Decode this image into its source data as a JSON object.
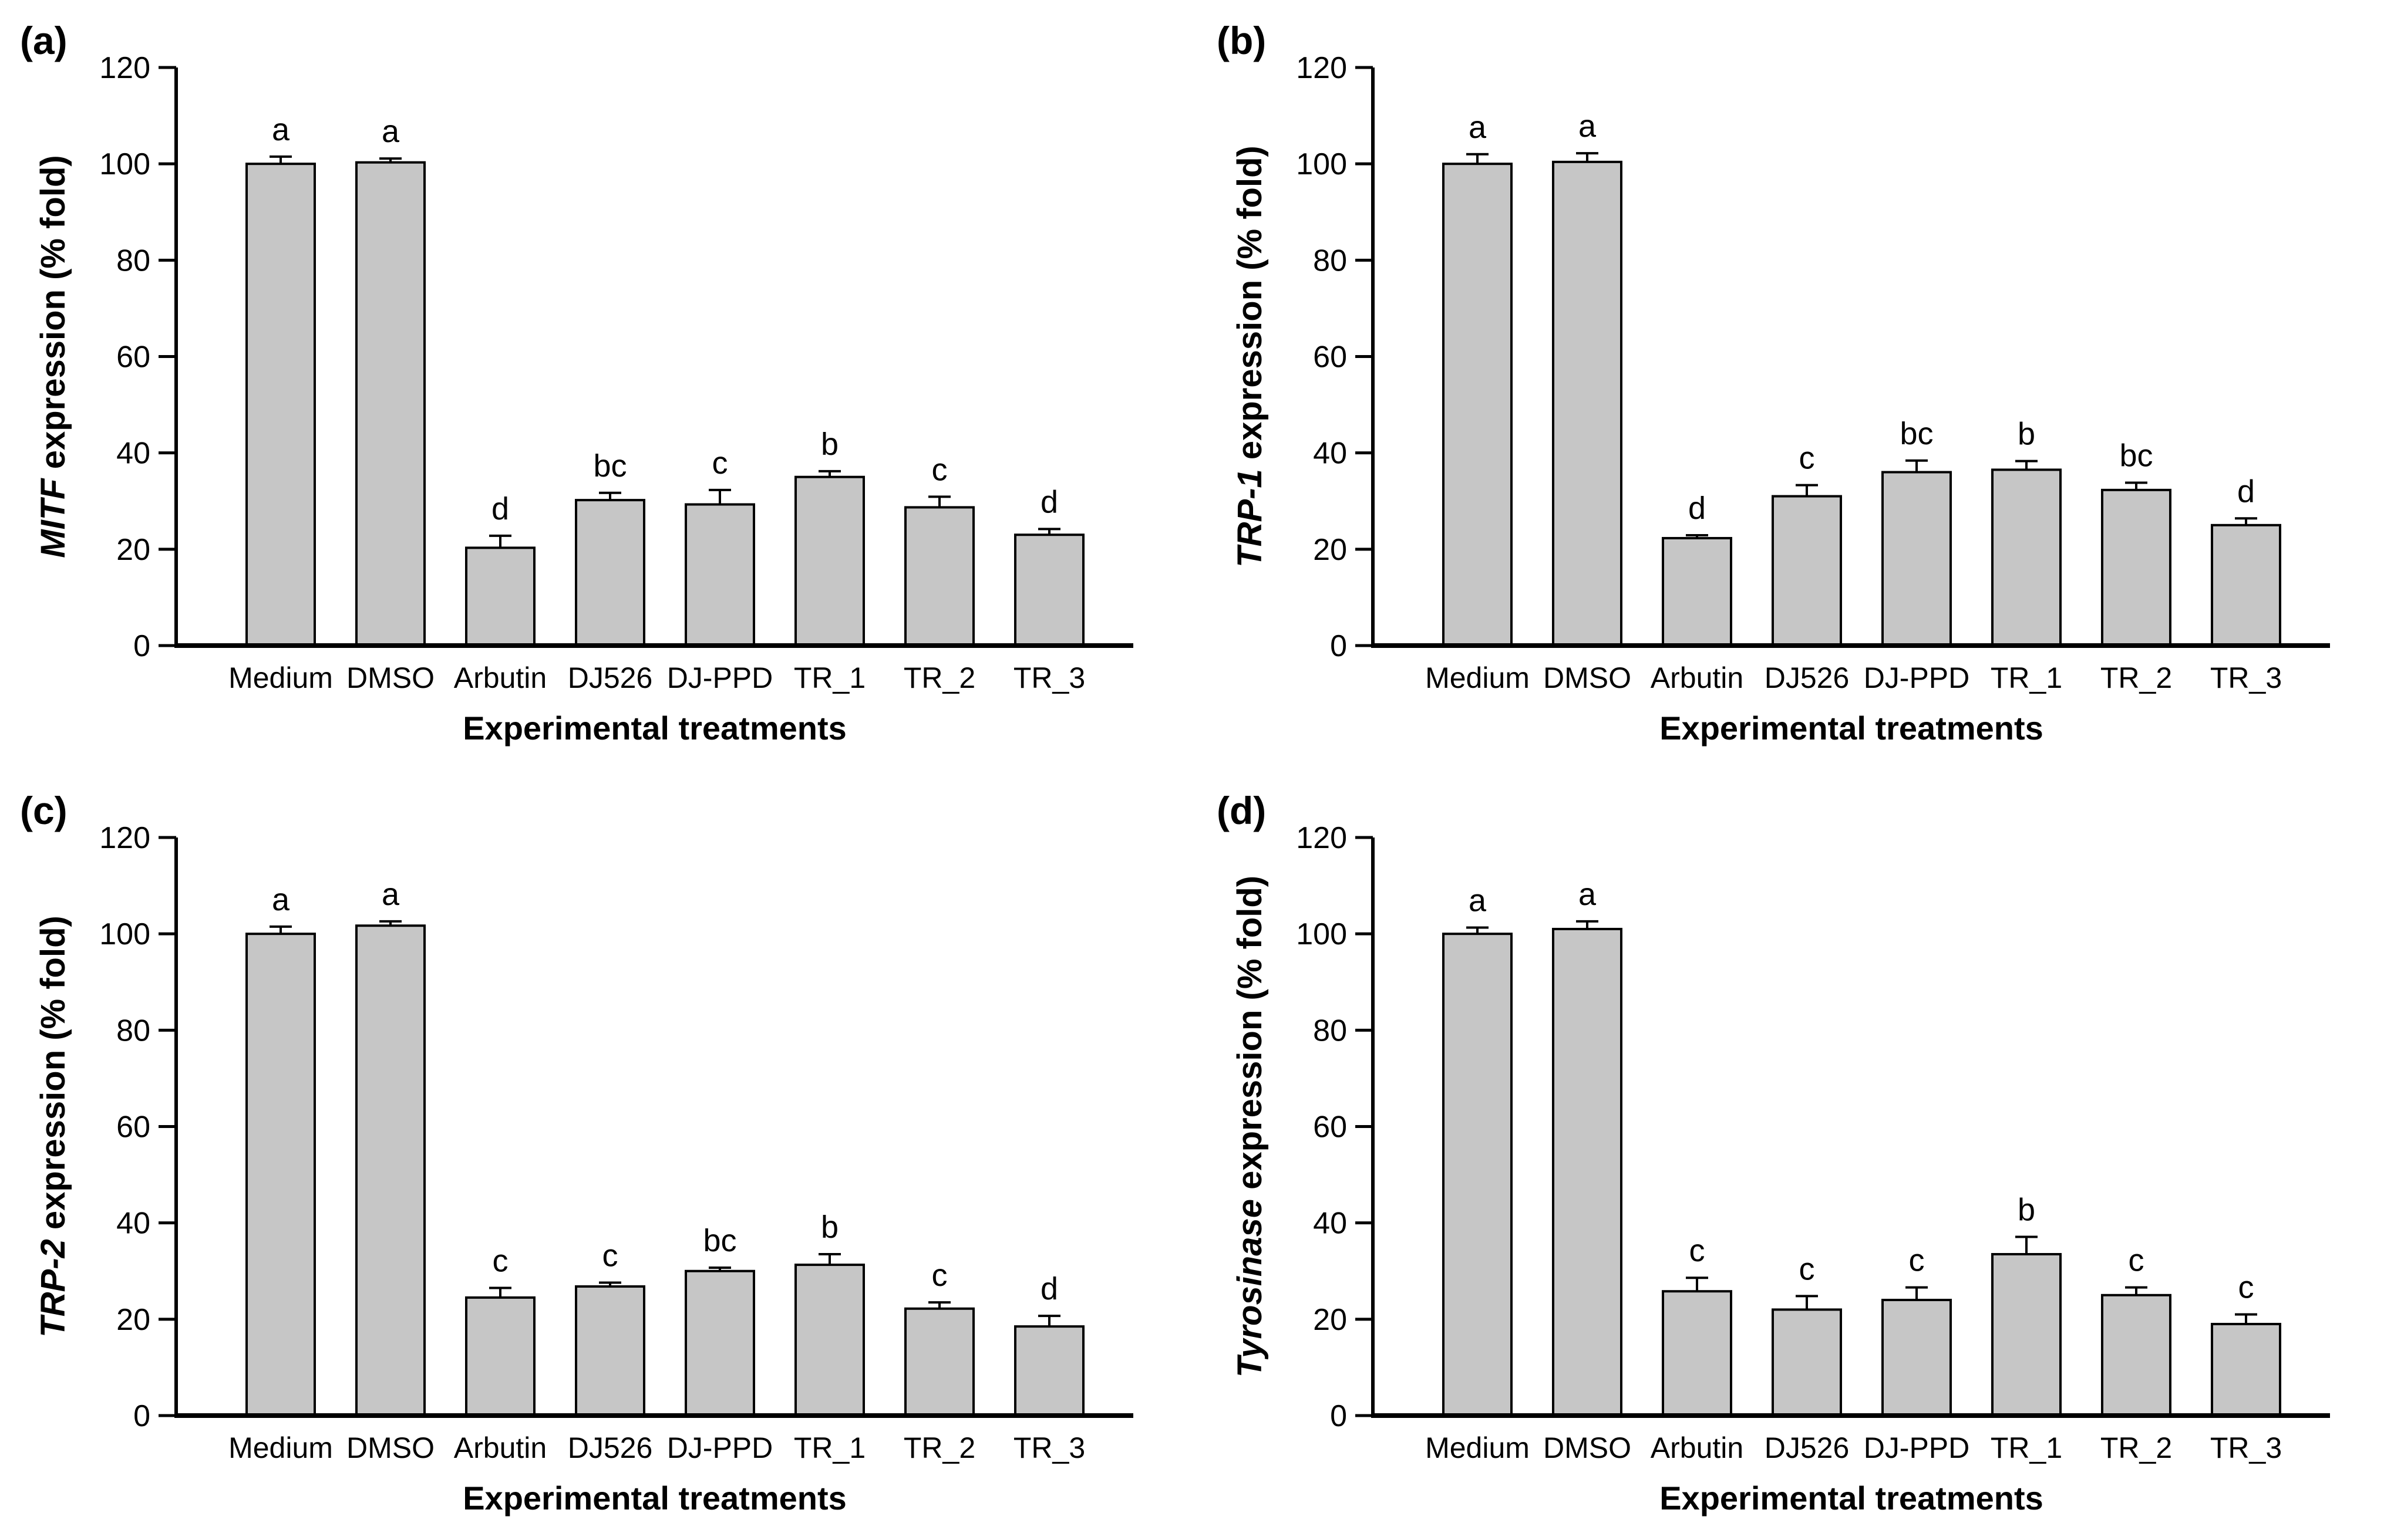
{
  "figure": {
    "description_visible_text_only": true,
    "bar_fill_color": "#c6c6c6",
    "bar_stroke_color": "#000000",
    "axis_color": "#000000",
    "background_color": "#ffffff"
  },
  "chart_data": [
    {
      "type": "bar",
      "panel_label": "(a)",
      "ylabel_italic": "MITF",
      "ylabel_rest": " expression (% fold)",
      "xlabel": "Experimental treatments",
      "ylim": [
        0,
        120
      ],
      "yticks": [
        0,
        20,
        40,
        60,
        80,
        100,
        120
      ],
      "grid": "off",
      "legend": "none",
      "categories": [
        "Medium",
        "DMSO",
        "Arbutin",
        "DJ526",
        "DJ-PPD",
        "TR_1",
        "TR_2",
        "TR_3"
      ],
      "values": [
        100,
        100.3,
        20.3,
        30.2,
        29.3,
        35.0,
        28.7,
        23.0
      ],
      "errors_upper": [
        1.5,
        0.8,
        2.5,
        1.5,
        3.0,
        1.2,
        2.2,
        1.2
      ],
      "sig_letters": [
        "a",
        "a",
        "d",
        "bc",
        "c",
        "b",
        "c",
        "d"
      ]
    },
    {
      "type": "bar",
      "panel_label": "(b)",
      "ylabel_italic": "TRP-1",
      "ylabel_rest": " expression (% fold)",
      "xlabel": "Experimental treatments",
      "ylim": [
        0,
        120
      ],
      "yticks": [
        0,
        20,
        40,
        60,
        80,
        100,
        120
      ],
      "grid": "off",
      "legend": "none",
      "categories": [
        "Medium",
        "DMSO",
        "Arbutin",
        "DJ526",
        "DJ-PPD",
        "TR_1",
        "TR_2",
        "TR_3"
      ],
      "values": [
        100,
        100.4,
        22.3,
        31.0,
        36.0,
        36.5,
        32.3,
        25.0
      ],
      "errors_upper": [
        2.0,
        1.8,
        0.6,
        2.3,
        2.4,
        1.8,
        1.5,
        1.4
      ],
      "sig_letters": [
        "a",
        "a",
        "d",
        "c",
        "bc",
        "b",
        "bc",
        "d"
      ]
    },
    {
      "type": "bar",
      "panel_label": "(c)",
      "ylabel_italic": "TRP-2",
      "ylabel_rest": " expression (% fold)",
      "xlabel": "Experimental treatments",
      "ylim": [
        0,
        120
      ],
      "yticks": [
        0,
        20,
        40,
        60,
        80,
        100,
        120
      ],
      "grid": "off",
      "legend": "none",
      "categories": [
        "Medium",
        "DMSO",
        "Arbutin",
        "DJ526",
        "DJ-PPD",
        "TR_1",
        "TR_2",
        "TR_3"
      ],
      "values": [
        100,
        101.7,
        24.5,
        26.8,
        30.0,
        31.3,
        22.2,
        18.5
      ],
      "errors_upper": [
        1.5,
        0.9,
        2.0,
        0.8,
        0.7,
        2.2,
        1.3,
        2.2
      ],
      "sig_letters": [
        "a",
        "a",
        "c",
        "c",
        "bc",
        "b",
        "c",
        "d"
      ]
    },
    {
      "type": "bar",
      "panel_label": "(d)",
      "ylabel_italic": "Tyrosinase",
      "ylabel_rest": " expression (% fold)",
      "xlabel": "Experimental treatments",
      "ylim": [
        0,
        120
      ],
      "yticks": [
        0,
        20,
        40,
        60,
        80,
        100,
        120
      ],
      "grid": "off",
      "legend": "none",
      "categories": [
        "Medium",
        "DMSO",
        "Arbutin",
        "DJ526",
        "DJ-PPD",
        "TR_1",
        "TR_2",
        "TR_3"
      ],
      "values": [
        100,
        101.0,
        25.8,
        22.0,
        24.0,
        33.5,
        25.0,
        19.0
      ],
      "errors_upper": [
        1.3,
        1.6,
        2.8,
        2.8,
        2.6,
        3.6,
        1.6,
        2.0
      ],
      "sig_letters": [
        "a",
        "a",
        "c",
        "c",
        "c",
        "b",
        "c",
        "c"
      ]
    }
  ]
}
